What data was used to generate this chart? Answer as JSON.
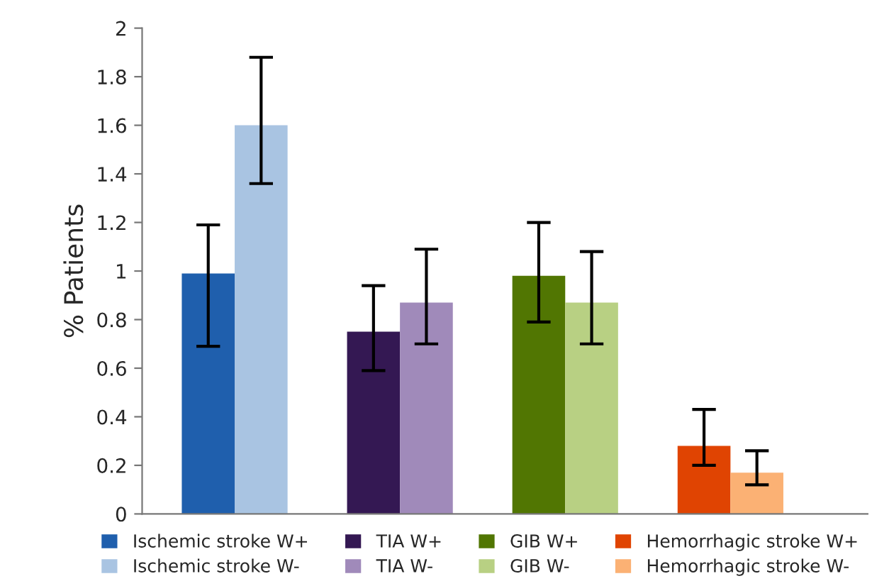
{
  "chart_data": {
    "type": "bar",
    "ylabel": "% Patients",
    "categories": [
      null,
      null,
      null,
      null
    ],
    "series": [
      {
        "name": "Ischemic stroke W+",
        "color": "#1f5fad",
        "values": [
          0.99,
          null,
          null,
          null
        ],
        "errors": [
          [
            0.69,
            1.19
          ],
          null,
          null,
          null
        ]
      },
      {
        "name": "Ischemic stroke W-",
        "color": "#a9c4e2",
        "values": [
          1.6,
          null,
          null,
          null
        ],
        "errors": [
          [
            1.36,
            1.88
          ],
          null,
          null,
          null
        ]
      },
      {
        "name": "TIA W+",
        "color": "#341853",
        "values": [
          null,
          0.75,
          null,
          null
        ],
        "errors": [
          null,
          [
            0.59,
            0.94
          ],
          null,
          null
        ]
      },
      {
        "name": "TIA W-",
        "color": "#a08aba",
        "values": [
          null,
          0.87,
          null,
          null
        ],
        "errors": [
          null,
          [
            0.7,
            1.09
          ],
          null,
          null
        ]
      },
      {
        "name": "GIB W+",
        "color": "#517602",
        "values": [
          null,
          null,
          0.98,
          null
        ],
        "errors": [
          null,
          null,
          [
            0.79,
            1.2
          ],
          null
        ]
      },
      {
        "name": "GIB W-",
        "color": "#b8d083",
        "values": [
          null,
          null,
          0.87,
          null
        ],
        "errors": [
          null,
          null,
          [
            0.7,
            1.08
          ],
          null
        ]
      },
      {
        "name": "Hemorrhagic stroke W+",
        "color": "#e04402",
        "values": [
          null,
          null,
          null,
          0.28
        ],
        "errors": [
          null,
          null,
          null,
          [
            0.2,
            0.43
          ]
        ]
      },
      {
        "name": "Hemorrhagic stroke W-",
        "color": "#fbb174",
        "values": [
          null,
          null,
          null,
          0.17
        ],
        "errors": [
          null,
          null,
          null,
          [
            0.12,
            0.26
          ]
        ]
      }
    ],
    "ylim": [
      0,
      2
    ],
    "yticks": [
      0,
      0.2,
      0.4,
      0.6,
      0.8,
      1,
      1.2,
      1.4,
      1.6,
      1.8,
      2
    ],
    "grid": false,
    "legend": "bottom"
  }
}
